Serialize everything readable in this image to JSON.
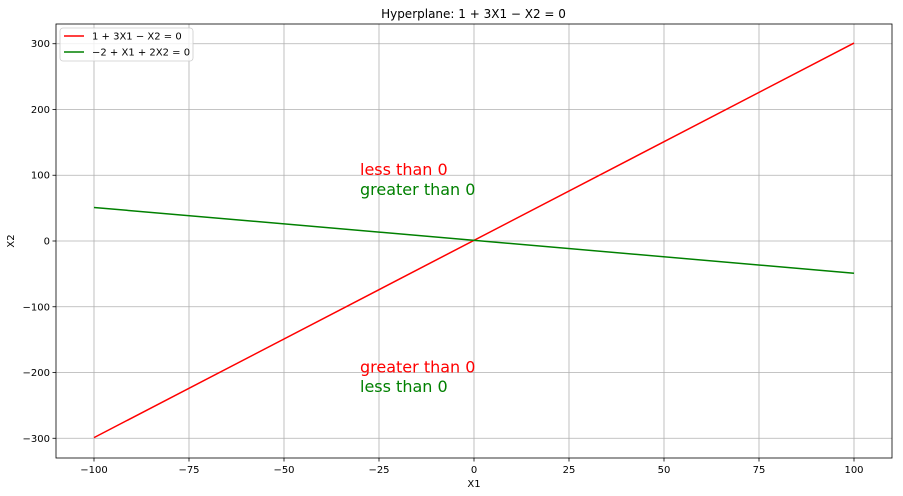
{
  "chart_data": {
    "type": "line",
    "title": "Hyperplane: 1 + 3X1 − X2 = 0",
    "xlabel": "X1",
    "ylabel": "X2",
    "xlim": [
      -110,
      110
    ],
    "ylim": [
      -330,
      330
    ],
    "grid": true,
    "legend_position": "top-left",
    "xticks": [
      -100,
      -75,
      -50,
      -25,
      0,
      25,
      50,
      75,
      100
    ],
    "xtick_labels": [
      "−100",
      "−75",
      "−50",
      "−25",
      "0",
      "25",
      "50",
      "75",
      "100"
    ],
    "yticks": [
      -300,
      -200,
      -100,
      0,
      100,
      200,
      300
    ],
    "ytick_labels": [
      "−300",
      "−200",
      "−100",
      "0",
      "100",
      "200",
      "300"
    ],
    "series": [
      {
        "name": "1 + 3X1 − X2 = 0",
        "color": "#ff0000",
        "x": [
          -100,
          100
        ],
        "y": [
          -299,
          301
        ]
      },
      {
        "name": "−2 + X1 + 2X2 = 0",
        "color": "#008000",
        "x": [
          -100,
          100
        ],
        "y": [
          51,
          -49
        ]
      }
    ],
    "annotations": [
      {
        "text": "less than 0",
        "x": -30,
        "y": 100,
        "color": "#ff0000"
      },
      {
        "text": "greater than 0",
        "x": -30,
        "y": 70,
        "color": "#008000"
      },
      {
        "text": "greater than 0",
        "x": -30,
        "y": -200,
        "color": "#ff0000"
      },
      {
        "text": "less than 0",
        "x": -30,
        "y": -230,
        "color": "#008000"
      }
    ]
  }
}
